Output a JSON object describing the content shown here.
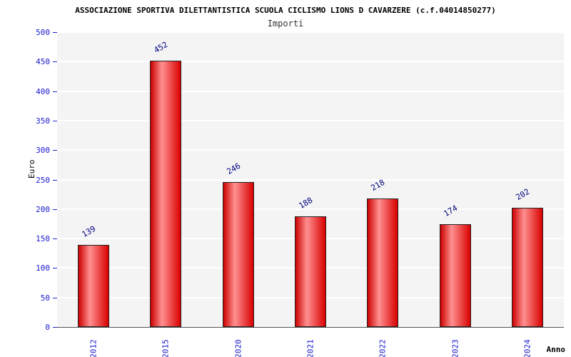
{
  "header": {
    "title": "ASSOCIAZIONE SPORTIVA DILETTANTISTICA SCUOLA CICLISMO LIONS D CAVARZERE (c.f.04014850277)",
    "subtitle": "Importi"
  },
  "chart_data": {
    "type": "bar",
    "title": "ASSOCIAZIONE SPORTIVA DILETTANTISTICA SCUOLA CICLISMO LIONS D CAVARZERE (c.f.04014850277)",
    "subtitle": "Importi",
    "categories": [
      "2012",
      "2015",
      "2020",
      "2021",
      "2022",
      "2023",
      "2024"
    ],
    "values": [
      139,
      452,
      246,
      188,
      218,
      174,
      202
    ],
    "xlabel": "Anno",
    "ylabel": "Euro",
    "ylim": [
      0,
      500
    ],
    "ytick_step": 50,
    "grid": "horizontal-white-on-gray",
    "legend_position": "none",
    "bar_color": "#dd0000",
    "bar_gradient_mid": "#ff9090",
    "label_color": "#000080",
    "axis_text_color": "#1a1acc",
    "plot_bg": "#f4f4f4"
  }
}
